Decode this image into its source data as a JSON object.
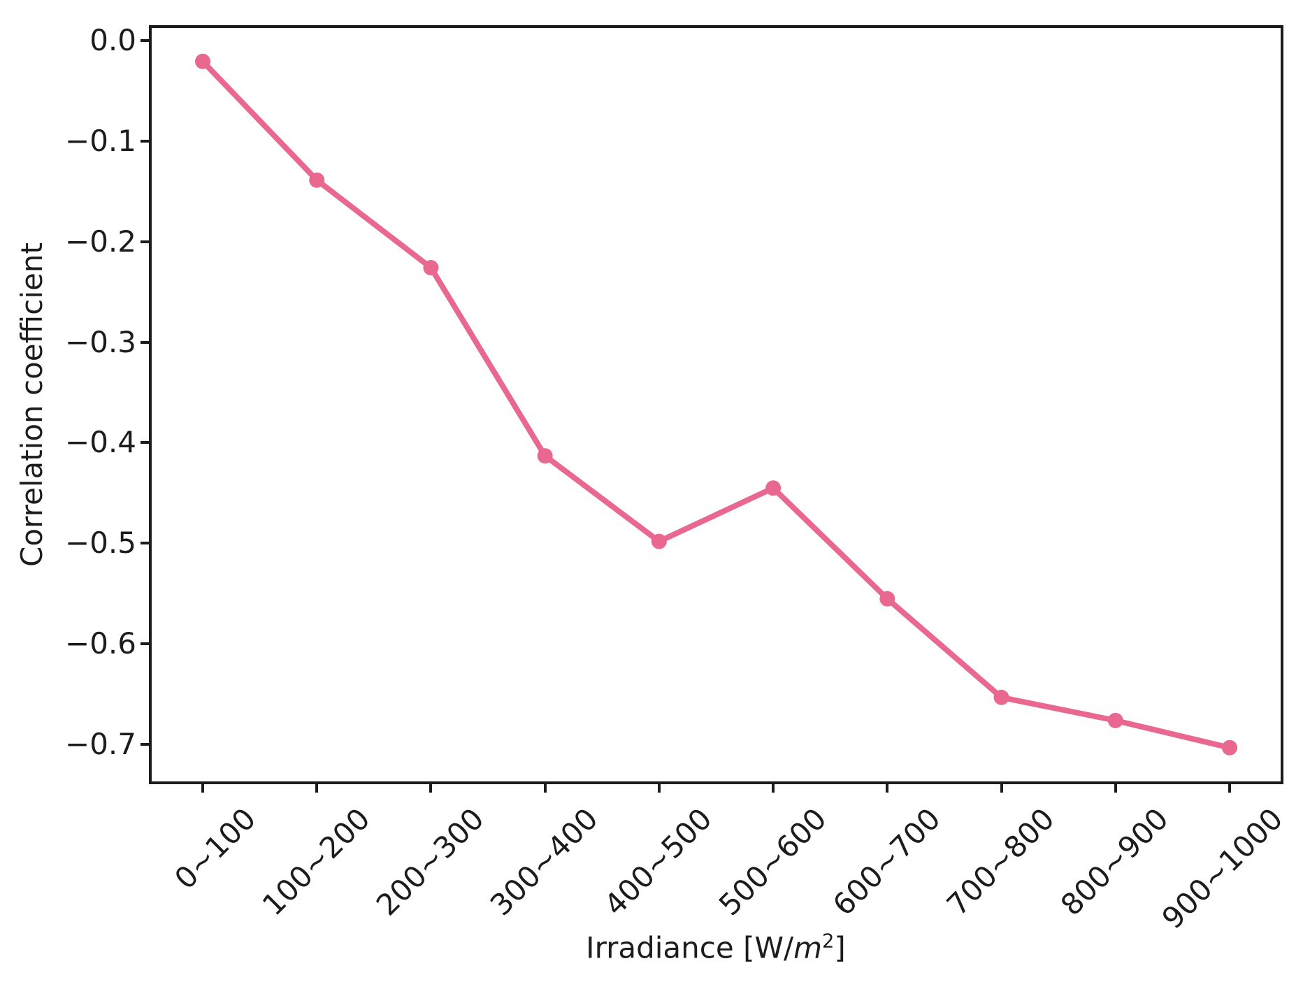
{
  "figure": {
    "background": "#ffffff",
    "spine_color": "#1c1c1c",
    "text_color": "#1c1c1c"
  },
  "chart_data": {
    "type": "line",
    "title": "",
    "categories": [
      "0~100",
      "100~200",
      "200~300",
      "300~400",
      "400~500",
      "500~600",
      "600~700",
      "700~800",
      "800~900",
      "900~1000"
    ],
    "values": [
      -0.021,
      -0.139,
      -0.226,
      -0.413,
      -0.498,
      -0.445,
      -0.555,
      -0.653,
      -0.676,
      -0.703
    ],
    "xlabel": "Irradiance [W/m²]",
    "xlabel_parts": {
      "prefix": "Irradiance [W/",
      "italic": "m",
      "sup": "2",
      "suffix": "]"
    },
    "ylabel": "Correlation coefficient",
    "y_ticks": [
      {
        "label": "0.0",
        "value": 0.0
      },
      {
        "label": "−0.1",
        "value": -0.1
      },
      {
        "label": "−0.2",
        "value": -0.2
      },
      {
        "label": "−0.3",
        "value": -0.3
      },
      {
        "label": "−0.4",
        "value": -0.4
      },
      {
        "label": "−0.5",
        "value": -0.5
      },
      {
        "label": "−0.6",
        "value": -0.6
      },
      {
        "label": "−0.7",
        "value": -0.7
      }
    ],
    "ylim": [
      -0.7365,
      0.0122
    ],
    "line_color": "#e9688f",
    "marker": "circle",
    "marker_radius": 11,
    "line_width": 8,
    "grid": false,
    "legend": false
  }
}
